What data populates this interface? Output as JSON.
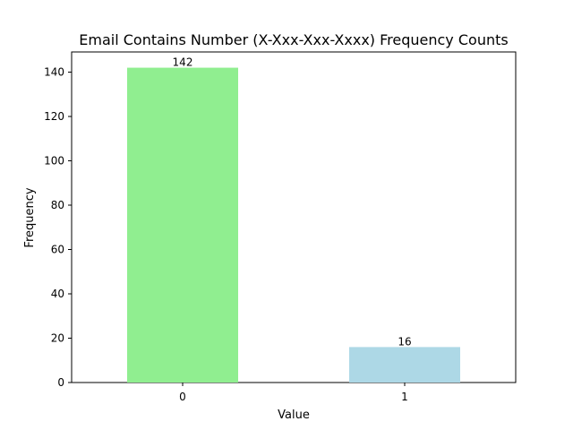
{
  "chart_data": {
    "type": "bar",
    "title": "Email Contains Number (X-Xxx-Xxx-Xxxx) Frequency Counts",
    "xlabel": "Value",
    "ylabel": "Frequency",
    "categories": [
      "0",
      "1"
    ],
    "values": [
      142,
      16
    ],
    "data_labels": [
      "142",
      "16"
    ],
    "colors": [
      "#90ee90",
      "#add8e6"
    ],
    "ylim": [
      0,
      149.1
    ],
    "yticks": [
      0,
      20,
      40,
      60,
      80,
      100,
      120,
      140
    ],
    "grid": false,
    "legend": "none"
  }
}
